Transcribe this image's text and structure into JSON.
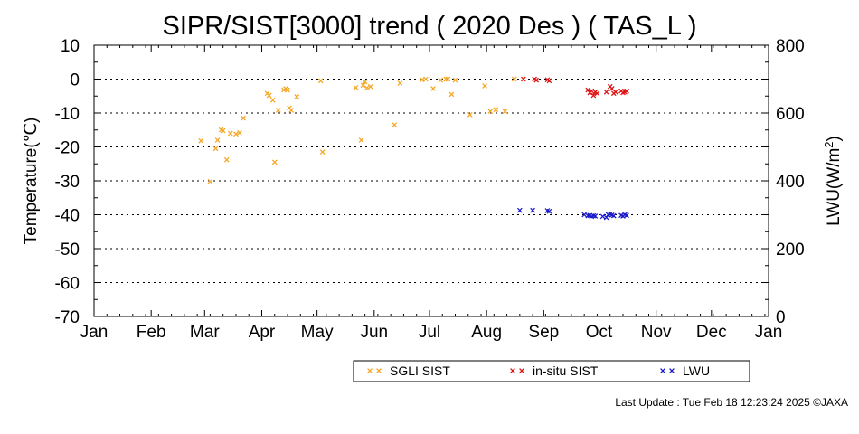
{
  "chart_data": {
    "type": "scatter",
    "title": "SIPR/SIST[3000] trend ( 2020 Des ) ( TAS_L )",
    "ylabel": "Temperature(℃)",
    "y2label_main": "LWU(W/m",
    "y2label_sup": "2",
    "y2label_end": ")",
    "xlabel": "",
    "ylim": [
      -70,
      10
    ],
    "y_ticks": [
      "10",
      "0",
      "-10",
      "-20",
      "-30",
      "-40",
      "-50",
      "-60",
      "-70"
    ],
    "y2lim": [
      0,
      800
    ],
    "y2_ticks": [
      "800",
      "600",
      "400",
      "200",
      "0"
    ],
    "x_ticks": [
      "Jan",
      "Feb",
      "Mar",
      "Apr",
      "May",
      "Jun",
      "Jul",
      "Aug",
      "Sep",
      "Oct",
      "Nov",
      "Dec",
      "Jan"
    ],
    "grid": "horizontal-dotted",
    "legend_position": "bottom",
    "colors": {
      "sgli": "#f5a623",
      "insitu": "#e01010",
      "lwu": "#1a1acd"
    },
    "series": [
      {
        "name": "SGLI SIST",
        "axis": "left",
        "x_unit": "day_of_year",
        "points": [
          [
            58,
            -18.2
          ],
          [
            63,
            -30.2
          ],
          [
            66,
            -20.5
          ],
          [
            67,
            -18
          ],
          [
            69,
            -15
          ],
          [
            70,
            -15.2
          ],
          [
            72,
            -23.8
          ],
          [
            74,
            -16
          ],
          [
            77,
            -16.2
          ],
          [
            79,
            -15.8
          ],
          [
            81,
            -11.5
          ],
          [
            94,
            -4.2
          ],
          [
            95,
            -4.8
          ],
          [
            97,
            -6.2
          ],
          [
            98,
            -24.5
          ],
          [
            100,
            -9.2
          ],
          [
            103,
            -3.2
          ],
          [
            104,
            -2.8
          ],
          [
            105,
            -3.2
          ],
          [
            106,
            -8.5
          ],
          [
            107,
            -9.2
          ],
          [
            110,
            -5.2
          ],
          [
            123,
            -0.5
          ],
          [
            124,
            -21.5
          ],
          [
            142,
            -2.5
          ],
          [
            145,
            -18
          ],
          [
            146,
            -1.8
          ],
          [
            147,
            -0.8
          ],
          [
            148,
            -2.6
          ],
          [
            150,
            -2.2
          ],
          [
            163,
            -13.5
          ],
          [
            166,
            -1.2
          ],
          [
            178,
            -0.2
          ],
          [
            180,
            0
          ],
          [
            184,
            -2.8
          ],
          [
            188,
            -0.3
          ],
          [
            191,
            0
          ],
          [
            192,
            0
          ],
          [
            194,
            -4.5
          ],
          [
            196,
            -0.3
          ],
          [
            204,
            -10.5
          ],
          [
            212,
            -2
          ],
          [
            215,
            -9.5
          ],
          [
            218,
            -9
          ],
          [
            223,
            -9.5
          ],
          [
            228,
            0
          ]
        ]
      },
      {
        "name": "in-situ SIST",
        "axis": "left",
        "x_unit": "day_of_year",
        "points": [
          [
            233,
            0
          ],
          [
            239,
            0
          ],
          [
            240,
            -0.3
          ],
          [
            246,
            -0.2
          ],
          [
            247,
            -0.5
          ],
          [
            268,
            -3.2
          ],
          [
            269,
            -4
          ],
          [
            270,
            -3.5
          ],
          [
            271,
            -4.8
          ],
          [
            272,
            -3.8
          ],
          [
            273,
            -4.2
          ],
          [
            278,
            -3.8
          ],
          [
            280,
            -2.2
          ],
          [
            281,
            -2.8
          ],
          [
            282,
            -4.2
          ],
          [
            283,
            -3.8
          ],
          [
            286,
            -3.5
          ],
          [
            287,
            -4
          ],
          [
            288,
            -3.8
          ],
          [
            289,
            -3.5
          ]
        ]
      },
      {
        "name": "LWU",
        "axis": "right",
        "x_unit": "day_of_year",
        "points": [
          [
            231,
            313
          ],
          [
            238,
            313
          ],
          [
            246,
            312
          ],
          [
            247,
            310
          ],
          [
            266,
            300
          ],
          [
            268,
            297
          ],
          [
            269,
            298
          ],
          [
            270,
            295
          ],
          [
            271,
            297
          ],
          [
            272,
            296
          ],
          [
            276,
            295
          ],
          [
            278,
            292
          ],
          [
            279,
            300
          ],
          [
            280,
            302
          ],
          [
            281,
            299
          ],
          [
            282,
            297
          ],
          [
            286,
            298
          ],
          [
            287,
            296
          ],
          [
            288,
            300
          ],
          [
            289,
            298
          ]
        ]
      }
    ]
  },
  "footer": {
    "last_update": "Last Update : Tue Feb 18 12:23:24 2025  ©JAXA"
  }
}
